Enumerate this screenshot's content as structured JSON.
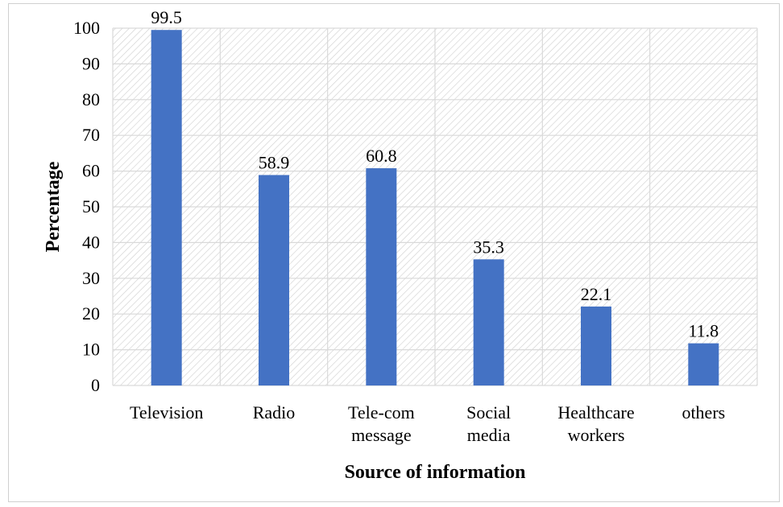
{
  "chart_data": {
    "type": "bar",
    "categories": [
      [
        "Television"
      ],
      [
        "Radio"
      ],
      [
        "Tele-com",
        "message"
      ],
      [
        "Social",
        "media"
      ],
      [
        "Healthcare",
        "workers"
      ],
      [
        "others"
      ]
    ],
    "values": [
      99.5,
      58.9,
      60.8,
      35.3,
      22.1,
      11.8
    ],
    "value_labels": [
      "99.5",
      "58.9",
      "60.8",
      "35.3",
      "22.1",
      "11.8"
    ],
    "title": "",
    "xlabel": "Source of information",
    "ylabel": "Percentage",
    "ylim": [
      0,
      100
    ],
    "yticks": [
      "0",
      "10",
      "20",
      "30",
      "40",
      "50",
      "60",
      "70",
      "80",
      "90",
      "100"
    ],
    "grid": true,
    "plot_background": "diagonal-hatch",
    "bar_color": "#4472C4",
    "grid_color": "#d9d9d9",
    "hatch_color": "#cfcfcf"
  }
}
